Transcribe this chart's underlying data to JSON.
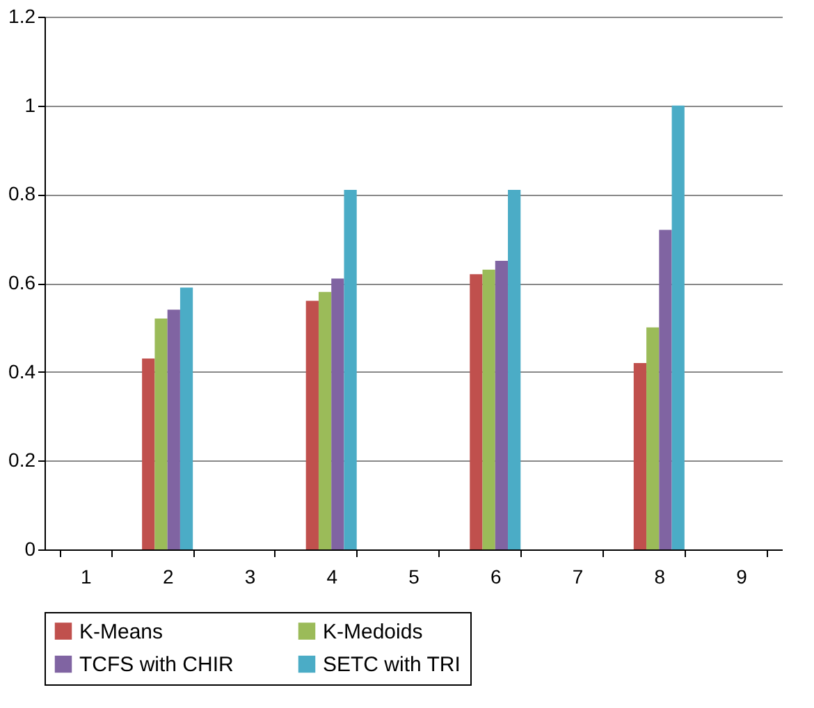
{
  "chart_data": {
    "type": "bar",
    "categories": [
      "1",
      "2",
      "3",
      "4",
      "5",
      "6",
      "7",
      "8",
      "9"
    ],
    "series": [
      {
        "name": "K-Means",
        "color": "#c0504d",
        "values": [
          null,
          0.43,
          null,
          0.56,
          null,
          0.62,
          null,
          0.42,
          null
        ]
      },
      {
        "name": "K-Medoids",
        "color": "#9bbb59",
        "values": [
          null,
          0.52,
          null,
          0.58,
          null,
          0.63,
          null,
          0.5,
          null
        ]
      },
      {
        "name": "TCFS  with CHIR",
        "color": "#8064a2",
        "values": [
          null,
          0.54,
          null,
          0.61,
          null,
          0.65,
          null,
          0.72,
          null
        ]
      },
      {
        "name": "SETC with TRI",
        "color": "#4bacc6",
        "values": [
          null,
          0.59,
          null,
          0.81,
          null,
          0.81,
          null,
          1.0,
          null
        ]
      }
    ],
    "ylim": [
      0,
      1.2
    ],
    "yticks": [
      0,
      0.2,
      0.4,
      0.6,
      0.8,
      1,
      1.2
    ],
    "grid": "y",
    "legend": "bottom"
  }
}
